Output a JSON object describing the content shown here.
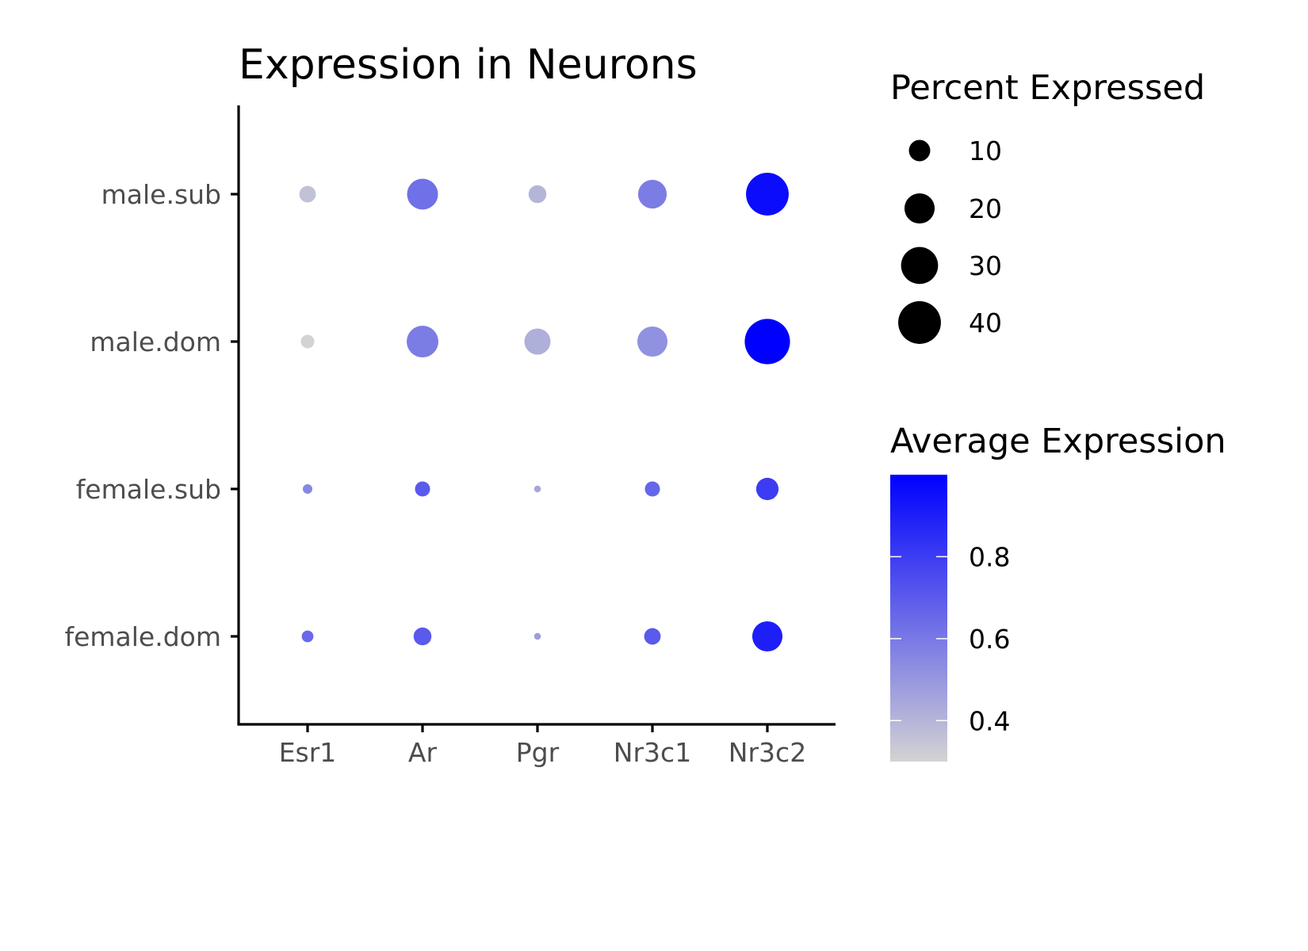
{
  "chart_data": {
    "type": "dot",
    "title": "Expression in Neurons",
    "xlabel": "",
    "ylabel": "",
    "genes": [
      "Esr1",
      "Ar",
      "Pgr",
      "Nr3c1",
      "Nr3c2"
    ],
    "groups": [
      "male.sub",
      "male.dom",
      "female.sub",
      "female.dom"
    ],
    "points": [
      {
        "group": "male.sub",
        "gene": "Esr1",
        "pct": 6,
        "avg": 0.36
      },
      {
        "group": "male.sub",
        "gene": "Ar",
        "pct": 21,
        "avg": 0.63
      },
      {
        "group": "male.sub",
        "gene": "Pgr",
        "pct": 7,
        "avg": 0.4
      },
      {
        "group": "male.sub",
        "gene": "Nr3c1",
        "pct": 18,
        "avg": 0.59
      },
      {
        "group": "male.sub",
        "gene": "Nr3c2",
        "pct": 40,
        "avg": 0.96
      },
      {
        "group": "male.dom",
        "gene": "Esr1",
        "pct": 4,
        "avg": 0.3
      },
      {
        "group": "male.dom",
        "gene": "Ar",
        "pct": 22,
        "avg": 0.59
      },
      {
        "group": "male.dom",
        "gene": "Pgr",
        "pct": 15,
        "avg": 0.42
      },
      {
        "group": "male.dom",
        "gene": "Nr3c1",
        "pct": 20,
        "avg": 0.52
      },
      {
        "group": "male.dom",
        "gene": "Nr3c2",
        "pct": 45,
        "avg": 1.0
      },
      {
        "group": "female.sub",
        "gene": "Esr1",
        "pct": 2,
        "avg": 0.55
      },
      {
        "group": "female.sub",
        "gene": "Ar",
        "pct": 5,
        "avg": 0.7
      },
      {
        "group": "female.sub",
        "gene": "Pgr",
        "pct": 1,
        "avg": 0.45
      },
      {
        "group": "female.sub",
        "gene": "Nr3c1",
        "pct": 5,
        "avg": 0.66
      },
      {
        "group": "female.sub",
        "gene": "Nr3c2",
        "pct": 11,
        "avg": 0.8
      },
      {
        "group": "female.dom",
        "gene": "Esr1",
        "pct": 3,
        "avg": 0.65
      },
      {
        "group": "female.dom",
        "gene": "Ar",
        "pct": 7,
        "avg": 0.7
      },
      {
        "group": "female.dom",
        "gene": "Pgr",
        "pct": 1,
        "avg": 0.48
      },
      {
        "group": "female.dom",
        "gene": "Nr3c1",
        "pct": 6,
        "avg": 0.7
      },
      {
        "group": "female.dom",
        "gene": "Nr3c2",
        "pct": 20,
        "avg": 0.9
      }
    ],
    "size_legend": {
      "title": "Percent Expressed",
      "breaks": [
        10,
        20,
        30,
        40
      ],
      "labels": [
        "10",
        "20",
        "30",
        "40"
      ],
      "color": "#000000"
    },
    "color_legend": {
      "title": "Average Expression",
      "min": 0.3,
      "max": 1.0,
      "breaks": [
        0.4,
        0.6,
        0.8
      ],
      "labels": [
        "0.4",
        "0.6",
        "0.8"
      ],
      "low_color": "#d3d3d3",
      "high_color": "#0000ff"
    },
    "grid": false,
    "legend_position": "right"
  }
}
